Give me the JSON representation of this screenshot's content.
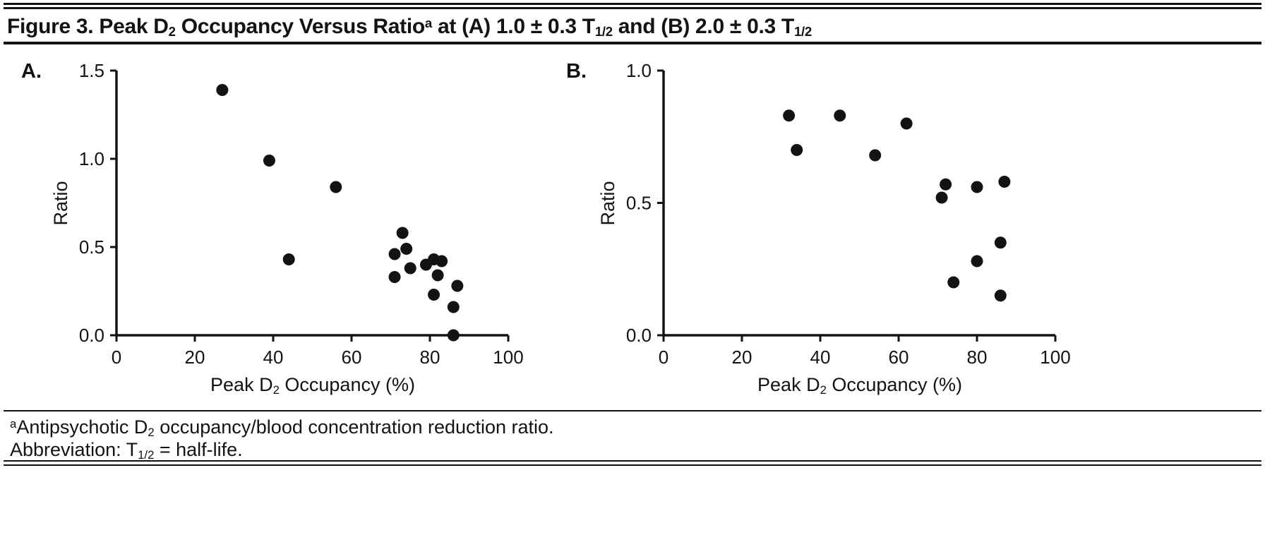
{
  "figure": {
    "title": {
      "prefix": "Figure 3. Peak D",
      "sub_d2": "2",
      "mid1": " Occupancy Versus Ratio",
      "sup_a": "a",
      "mid2": " at (A) 1.0 ± 0.3 T",
      "sub_t1": "1/2",
      "mid3": " and (B) 2.0 ± 0.3 T",
      "sub_t2": "1/2"
    },
    "footnote": {
      "sup_a": "a",
      "line1_pre": "Antipsychotic D",
      "line1_sub": "2",
      "line1_post": " occupancy/blood concentration reduction ratio.",
      "line2_pre": "Abbreviation: T",
      "line2_sub": "1/2",
      "line2_post": " = half-life."
    }
  },
  "panels": {
    "a": {
      "label": "A.",
      "ylabel": "Ratio",
      "xlabel": {
        "pre": "Peak D",
        "sub": "2",
        "post": " Occupancy (%)"
      }
    },
    "b": {
      "label": "B.",
      "ylabel": "Ratio",
      "xlabel": {
        "pre": "Peak D",
        "sub": "2",
        "post": " Occupancy (%)"
      }
    }
  },
  "chart_data": [
    {
      "type": "scatter",
      "panel": "A",
      "title": "Peak D2 Occupancy Versus Ratio at 1.0 ± 0.3 T1/2",
      "xlabel": "Peak D2 Occupancy (%)",
      "ylabel": "Ratio",
      "xlim": [
        0,
        100
      ],
      "ylim": [
        0,
        1.5
      ],
      "xticks": [
        "0",
        "20",
        "40",
        "60",
        "80",
        "100"
      ],
      "yticks": [
        "0.0",
        "0.5",
        "1.0",
        "1.5"
      ],
      "grid": false,
      "legend": "none",
      "marker_color": "#131313",
      "points": [
        [
          27,
          1.39
        ],
        [
          39,
          0.99
        ],
        [
          44,
          0.43
        ],
        [
          56,
          0.84
        ],
        [
          71,
          0.46
        ],
        [
          73,
          0.58
        ],
        [
          74,
          0.49
        ],
        [
          71,
          0.33
        ],
        [
          75,
          0.38
        ],
        [
          79,
          0.4
        ],
        [
          81,
          0.43
        ],
        [
          83,
          0.42
        ],
        [
          82,
          0.34
        ],
        [
          81,
          0.23
        ],
        [
          87,
          0.28
        ],
        [
          86,
          0.16
        ],
        [
          86,
          0.0
        ]
      ]
    },
    {
      "type": "scatter",
      "panel": "B",
      "title": "Peak D2 Occupancy Versus Ratio at 2.0 ± 0.3 T1/2",
      "xlabel": "Peak D2 Occupancy (%)",
      "ylabel": "Ratio",
      "xlim": [
        0,
        100
      ],
      "ylim": [
        0,
        1.0
      ],
      "xticks": [
        "0",
        "20",
        "40",
        "60",
        "80",
        "100"
      ],
      "yticks": [
        "0.0",
        "0.5",
        "1.0"
      ],
      "grid": false,
      "legend": "none",
      "marker_color": "#131313",
      "points": [
        [
          32,
          0.83
        ],
        [
          34,
          0.7
        ],
        [
          45,
          0.83
        ],
        [
          54,
          0.68
        ],
        [
          62,
          0.8
        ],
        [
          71,
          0.52
        ],
        [
          72,
          0.57
        ],
        [
          80,
          0.56
        ],
        [
          87,
          0.58
        ],
        [
          86,
          0.35
        ],
        [
          80,
          0.28
        ],
        [
          74,
          0.2
        ],
        [
          86,
          0.15
        ]
      ]
    }
  ]
}
